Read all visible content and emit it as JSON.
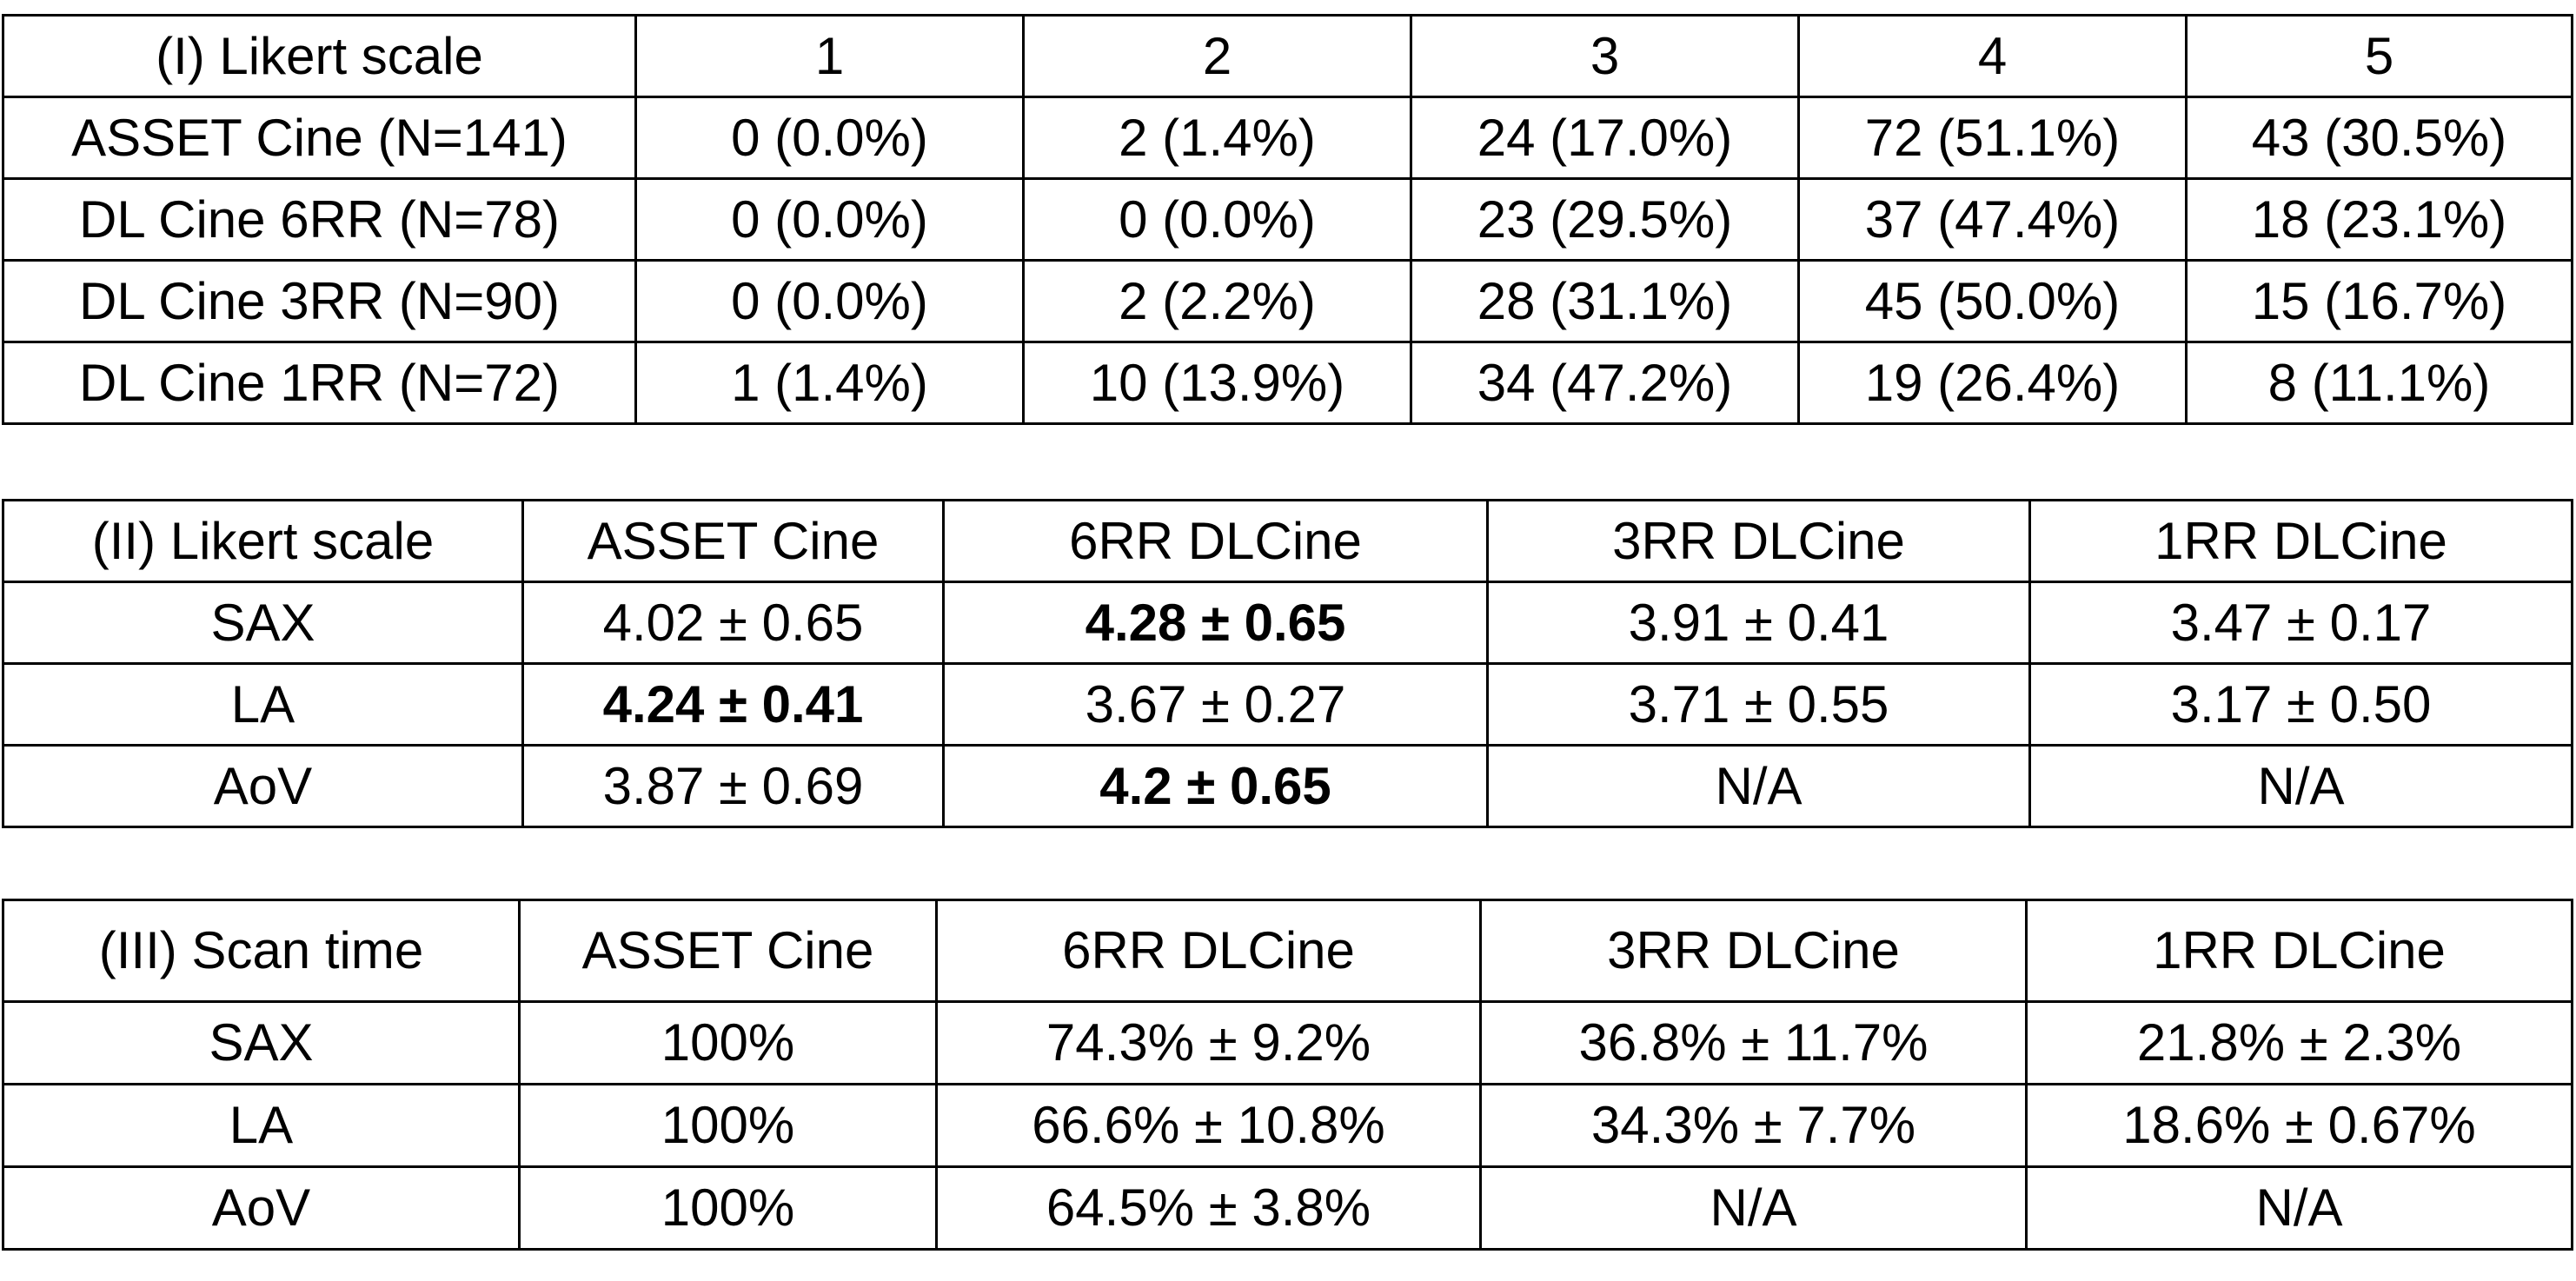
{
  "table1": {
    "header": [
      "(I) Likert scale",
      "1",
      "2",
      "3",
      "4",
      "5"
    ],
    "rows": [
      [
        "ASSET Cine (N=141)",
        "0 (0.0%)",
        "2 (1.4%)",
        "24 (17.0%)",
        "72 (51.1%)",
        "43 (30.5%)"
      ],
      [
        "DL Cine 6RR (N=78)",
        "0 (0.0%)",
        "0 (0.0%)",
        "23 (29.5%)",
        "37 (47.4%)",
        "18 (23.1%)"
      ],
      [
        "DL Cine 3RR (N=90)",
        "0 (0.0%)",
        "2 (2.2%)",
        "28 (31.1%)",
        "45 (50.0%)",
        "15 (16.7%)"
      ],
      [
        "DL Cine 1RR (N=72)",
        "1 (1.4%)",
        "10 (13.9%)",
        "34 (47.2%)",
        "19 (26.4%)",
        "8 (11.1%)"
      ]
    ]
  },
  "table2": {
    "header": [
      "(II) Likert scale",
      "ASSET Cine",
      "6RR DLCine",
      "3RR DLCine",
      "1RR DLCine"
    ],
    "rows": [
      [
        "SAX",
        "4.02 ± 0.65",
        "4.28 ± 0.65",
        "3.91 ± 0.41",
        "3.47 ± 0.17"
      ],
      [
        "LA",
        "4.24 ± 0.41",
        "3.67 ± 0.27",
        "3.71 ± 0.55",
        "3.17 ± 0.50"
      ],
      [
        "AoV",
        "3.87 ± 0.69",
        "4.2 ± 0.65",
        "N/A",
        "N/A"
      ]
    ],
    "bold_cells": [
      "0.2",
      "1.1",
      "2.2"
    ]
  },
  "table3": {
    "header": [
      "(III) Scan time",
      "ASSET Cine",
      "6RR DLCine",
      "3RR DLCine",
      "1RR DLCine"
    ],
    "rows": [
      [
        "SAX",
        "100%",
        "74.3% ± 9.2%",
        "36.8% ± 11.7%",
        "21.8% ± 2.3%"
      ],
      [
        "LA",
        "100%",
        "66.6% ± 10.8%",
        "34.3% ± 7.7%",
        "18.6% ± 0.67%"
      ],
      [
        "AoV",
        "100%",
        "64.5% ± 3.8%",
        "N/A",
        "N/A"
      ]
    ]
  }
}
